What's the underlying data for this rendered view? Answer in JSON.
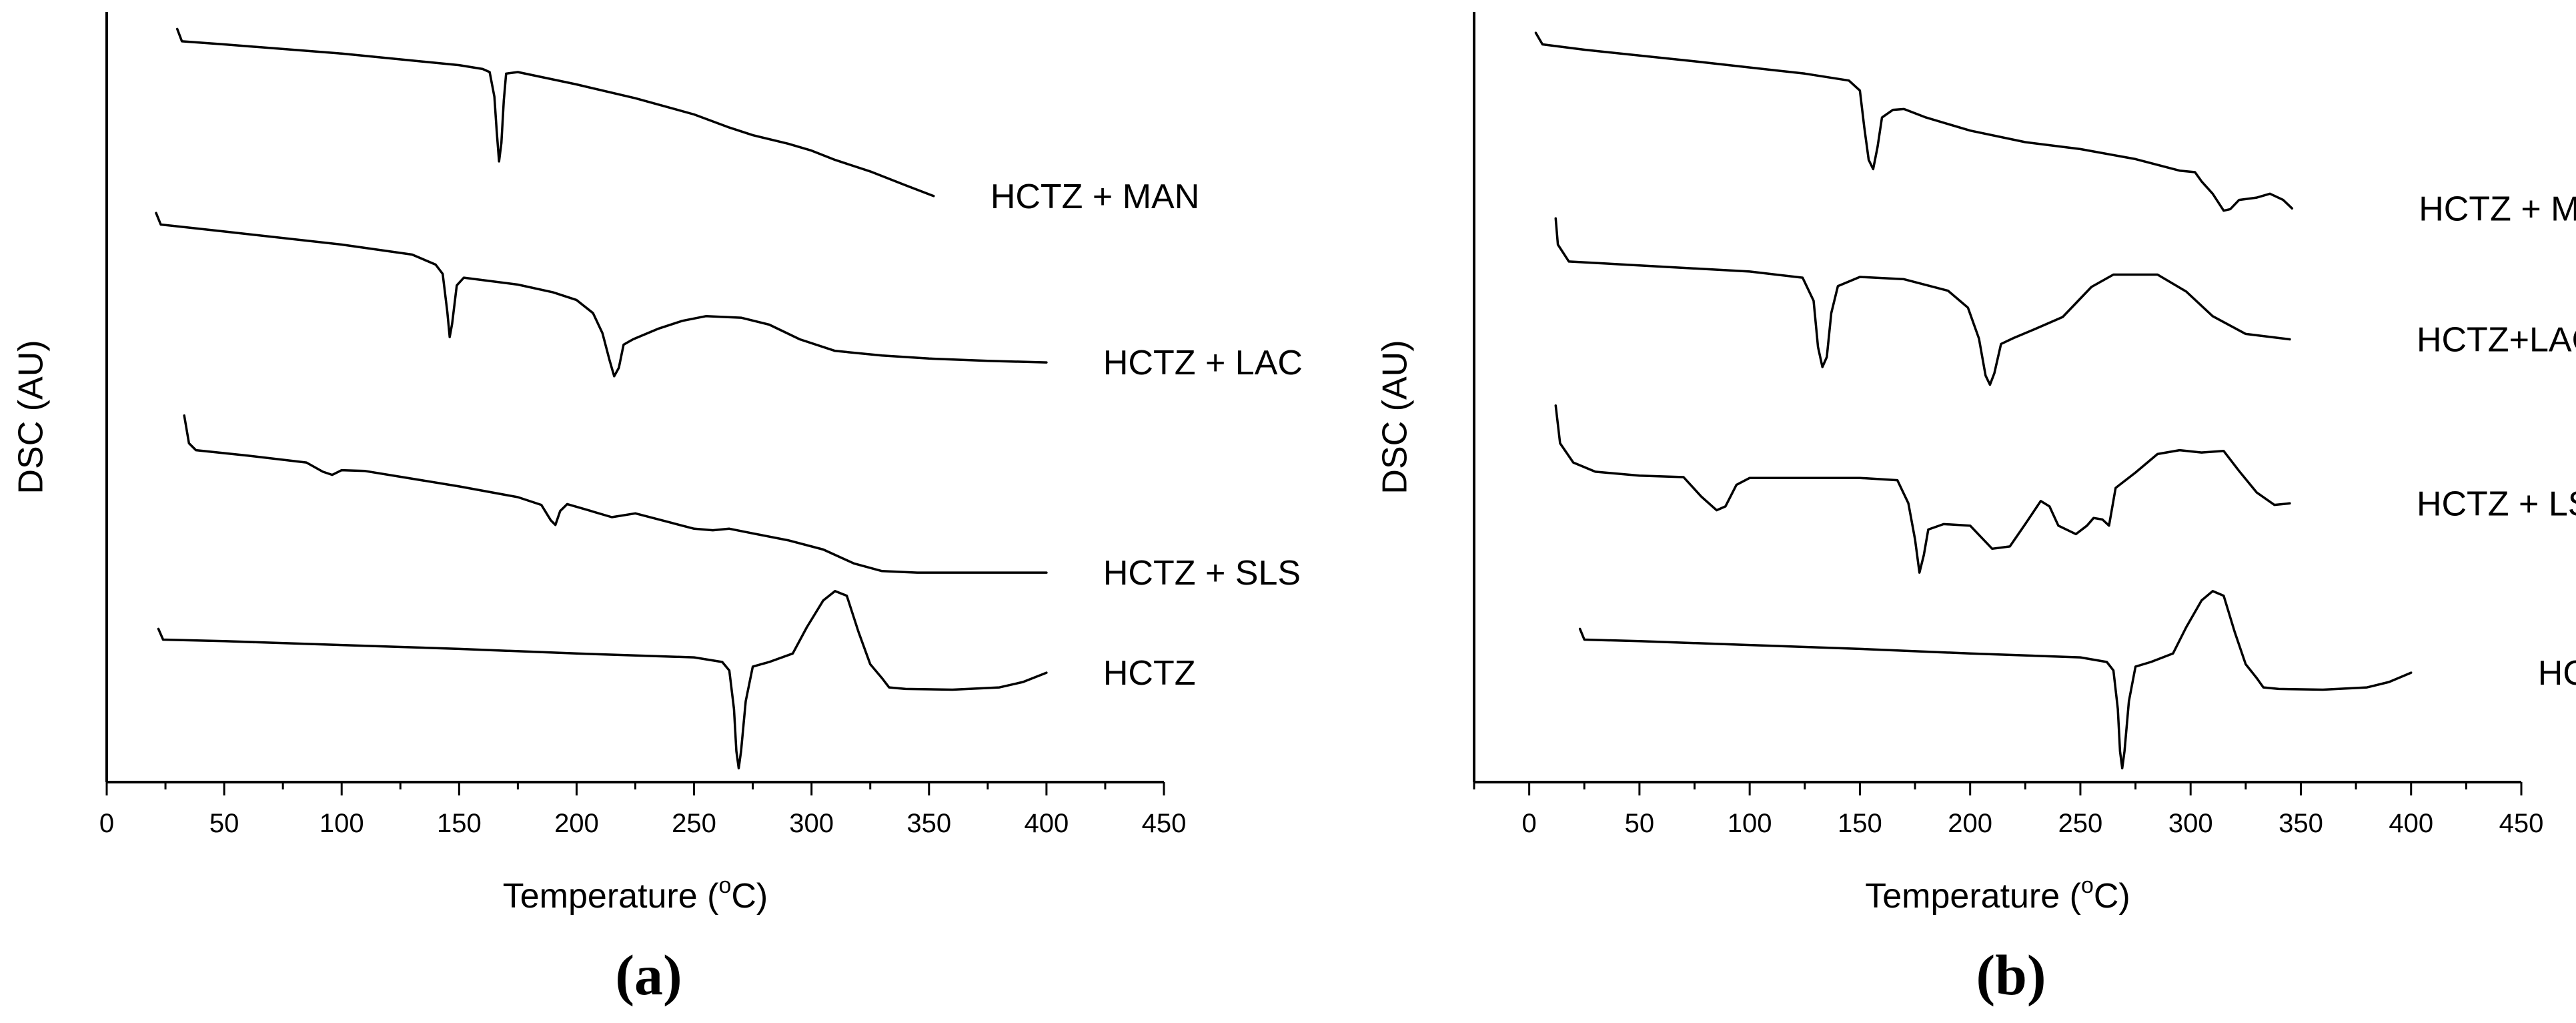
{
  "chart_data": [
    {
      "type": "line",
      "panel_label": "a",
      "title": "",
      "xlabel": "Temperature (°C)",
      "xlabel_parts": {
        "prefix": "Temperature (",
        "superscript": "o",
        "suffix": "C)"
      },
      "ylabel": "DSC (AU)",
      "xlim": [
        0,
        450
      ],
      "xticks": [
        0,
        50,
        100,
        150,
        200,
        250,
        300,
        350,
        400,
        450
      ],
      "ylim": [
        0,
        100
      ],
      "yticks_shown": false,
      "series": [
        {
          "name": "HCTZ + MAN",
          "label_x": 400,
          "points": [
            [
              30,
              97.8
            ],
            [
              32,
              96.2
            ],
            [
              50,
              95.8
            ],
            [
              100,
              94.6
            ],
            [
              150,
              93.1
            ],
            [
              160,
              92.6
            ],
            [
              163,
              92.2
            ],
            [
              165,
              89.0
            ],
            [
              166,
              84.5
            ],
            [
              167,
              80.6
            ],
            [
              168,
              83.0
            ],
            [
              169,
              88.5
            ],
            [
              170,
              92.0
            ],
            [
              175,
              92.2
            ],
            [
              200,
              90.6
            ],
            [
              225,
              88.8
            ],
            [
              250,
              86.7
            ],
            [
              265,
              85.0
            ],
            [
              275,
              84.0
            ],
            [
              290,
              82.9
            ],
            [
              300,
              82.0
            ],
            [
              310,
              80.8
            ],
            [
              325,
              79.3
            ],
            [
              340,
              77.5
            ],
            [
              352,
              76.1
            ]
          ]
        },
        {
          "name": "HCTZ + LAC",
          "label_x": 400,
          "points": [
            [
              21,
              73.9
            ],
            [
              23,
              72.4
            ],
            [
              50,
              71.5
            ],
            [
              100,
              69.8
            ],
            [
              130,
              68.5
            ],
            [
              140,
              67.2
            ],
            [
              143,
              66.0
            ],
            [
              145,
              61.0
            ],
            [
              146,
              57.8
            ],
            [
              147,
              59.5
            ],
            [
              149,
              64.5
            ],
            [
              152,
              65.5
            ],
            [
              175,
              64.6
            ],
            [
              190,
              63.6
            ],
            [
              200,
              62.6
            ],
            [
              207,
              60.9
            ],
            [
              211,
              58.3
            ],
            [
              214,
              54.8
            ],
            [
              216,
              52.7
            ],
            [
              218,
              53.8
            ],
            [
              220,
              56.8
            ],
            [
              224,
              57.5
            ],
            [
              235,
              58.9
            ],
            [
              245,
              59.9
            ],
            [
              255,
              60.5
            ],
            [
              270,
              60.3
            ],
            [
              282,
              59.4
            ],
            [
              295,
              57.5
            ],
            [
              310,
              56.0
            ],
            [
              330,
              55.4
            ],
            [
              350,
              55.0
            ],
            [
              375,
              54.7
            ],
            [
              400,
              54.5
            ]
          ]
        },
        {
          "name": "HCTZ + SLS",
          "label_x": 400,
          "points": [
            [
              33,
              47.6
            ],
            [
              35,
              44.0
            ],
            [
              38,
              43.1
            ],
            [
              60,
              42.4
            ],
            [
              85,
              41.5
            ],
            [
              92,
              40.3
            ],
            [
              96,
              39.9
            ],
            [
              100,
              40.5
            ],
            [
              110,
              40.4
            ],
            [
              150,
              38.4
            ],
            [
              175,
              37.0
            ],
            [
              185,
              36.0
            ],
            [
              189,
              34.0
            ],
            [
              191,
              33.4
            ],
            [
              193,
              35.2
            ],
            [
              196,
              36.1
            ],
            [
              205,
              35.3
            ],
            [
              215,
              34.4
            ],
            [
              225,
              34.9
            ],
            [
              240,
              33.7
            ],
            [
              250,
              32.9
            ],
            [
              258,
              32.7
            ],
            [
              265,
              32.9
            ],
            [
              275,
              32.3
            ],
            [
              290,
              31.4
            ],
            [
              305,
              30.2
            ],
            [
              318,
              28.4
            ],
            [
              330,
              27.4
            ],
            [
              345,
              27.2
            ],
            [
              400,
              27.2
            ]
          ]
        },
        {
          "name": "HCTZ",
          "label_x": 400,
          "points": [
            [
              22,
              19.9
            ],
            [
              24,
              18.5
            ],
            [
              50,
              18.3
            ],
            [
              100,
              17.8
            ],
            [
              150,
              17.3
            ],
            [
              200,
              16.7
            ],
            [
              250,
              16.2
            ],
            [
              262,
              15.6
            ],
            [
              265,
              14.5
            ],
            [
              267,
              9.5
            ],
            [
              268,
              4.0
            ],
            [
              269,
              1.8
            ],
            [
              270,
              4.0
            ],
            [
              272,
              10.5
            ],
            [
              275,
              15.0
            ],
            [
              282,
              15.6
            ],
            [
              292,
              16.7
            ],
            [
              298,
              20.1
            ],
            [
              305,
              23.6
            ],
            [
              310,
              24.8
            ],
            [
              315,
              24.2
            ],
            [
              320,
              19.5
            ],
            [
              325,
              15.3
            ],
            [
              330,
              13.5
            ],
            [
              333,
              12.3
            ],
            [
              340,
              12.1
            ],
            [
              360,
              12.0
            ],
            [
              380,
              12.3
            ],
            [
              390,
              13.0
            ],
            [
              400,
              14.2
            ]
          ]
        }
      ]
    },
    {
      "type": "line",
      "panel_label": "b",
      "title": "",
      "xlabel": "Temperature (°C)",
      "xlabel_parts": {
        "prefix": "Temperature (",
        "superscript": "o",
        "suffix": "C)"
      },
      "ylabel": "DSC (AU)",
      "xlim": [
        -25,
        450
      ],
      "xticks": [
        0,
        50,
        100,
        150,
        200,
        250,
        300,
        350,
        400,
        450
      ],
      "ylim": [
        0,
        100
      ],
      "yticks_shown": false,
      "series": [
        {
          "name": "HCTZ + MAN",
          "label_x": 400,
          "points": [
            [
              3,
              97.3
            ],
            [
              6,
              95.8
            ],
            [
              25,
              95.1
            ],
            [
              75,
              93.6
            ],
            [
              125,
              92.0
            ],
            [
              145,
              91.1
            ],
            [
              150,
              89.8
            ],
            [
              152,
              85.0
            ],
            [
              154,
              80.8
            ],
            [
              156,
              79.6
            ],
            [
              158,
              82.5
            ],
            [
              160,
              86.3
            ],
            [
              165,
              87.3
            ],
            [
              170,
              87.4
            ],
            [
              180,
              86.3
            ],
            [
              200,
              84.6
            ],
            [
              225,
              83.1
            ],
            [
              250,
              82.2
            ],
            [
              275,
              80.9
            ],
            [
              295,
              79.4
            ],
            [
              302,
              79.2
            ],
            [
              305,
              78.0
            ],
            [
              310,
              76.4
            ],
            [
              315,
              74.2
            ],
            [
              318,
              74.4
            ],
            [
              322,
              75.6
            ],
            [
              330,
              75.9
            ],
            [
              336,
              76.4
            ],
            [
              342,
              75.6
            ],
            [
              346,
              74.5
            ]
          ]
        },
        {
          "name": "HCTZ+LAC",
          "label_x": 400,
          "points": [
            [
              12,
              73.2
            ],
            [
              13,
              69.8
            ],
            [
              18,
              67.6
            ],
            [
              50,
              67.1
            ],
            [
              100,
              66.3
            ],
            [
              124,
              65.5
            ],
            [
              129,
              62.5
            ],
            [
              131,
              56.5
            ],
            [
              133,
              53.9
            ],
            [
              135,
              55.2
            ],
            [
              137,
              60.9
            ],
            [
              140,
              64.4
            ],
            [
              150,
              65.6
            ],
            [
              170,
              65.3
            ],
            [
              190,
              63.8
            ],
            [
              199,
              61.6
            ],
            [
              204,
              57.6
            ],
            [
              207,
              52.8
            ],
            [
              209,
              51.6
            ],
            [
              211,
              53.1
            ],
            [
              214,
              56.9
            ],
            [
              220,
              57.7
            ],
            [
              230,
              58.9
            ],
            [
              242,
              60.4
            ],
            [
              255,
              64.3
            ],
            [
              265,
              65.9
            ],
            [
              285,
              65.9
            ],
            [
              298,
              63.7
            ],
            [
              310,
              60.5
            ],
            [
              325,
              58.2
            ],
            [
              345,
              57.5
            ]
          ]
        },
        {
          "name": "HCTZ + LSS",
          "label_x": 400,
          "points": [
            [
              12,
              48.9
            ],
            [
              14,
              44.0
            ],
            [
              20,
              41.5
            ],
            [
              30,
              40.3
            ],
            [
              50,
              39.8
            ],
            [
              70,
              39.6
            ],
            [
              78,
              37.1
            ],
            [
              85,
              35.3
            ],
            [
              89,
              35.8
            ],
            [
              94,
              38.6
            ],
            [
              100,
              39.5
            ],
            [
              150,
              39.5
            ],
            [
              167,
              39.2
            ],
            [
              172,
              36.2
            ],
            [
              175,
              31.5
            ],
            [
              177,
              27.2
            ],
            [
              179,
              29.5
            ],
            [
              181,
              32.8
            ],
            [
              188,
              33.5
            ],
            [
              200,
              33.3
            ],
            [
              210,
              30.3
            ],
            [
              218,
              30.6
            ],
            [
              225,
              33.5
            ],
            [
              232,
              36.5
            ],
            [
              236,
              35.8
            ],
            [
              240,
              33.3
            ],
            [
              248,
              32.2
            ],
            [
              253,
              33.3
            ],
            [
              256,
              34.3
            ],
            [
              260,
              34.1
            ],
            [
              263,
              33.3
            ],
            [
              266,
              38.2
            ],
            [
              275,
              40.2
            ],
            [
              285,
              42.6
            ],
            [
              295,
              43.1
            ],
            [
              305,
              42.8
            ],
            [
              315,
              43.0
            ],
            [
              322,
              40.4
            ],
            [
              330,
              37.6
            ],
            [
              338,
              36.0
            ],
            [
              345,
              36.2
            ]
          ]
        },
        {
          "name": "HCTZ",
          "label_x": 400,
          "points": [
            [
              23,
              19.9
            ],
            [
              25,
              18.5
            ],
            [
              50,
              18.3
            ],
            [
              100,
              17.8
            ],
            [
              150,
              17.3
            ],
            [
              200,
              16.7
            ],
            [
              250,
              16.2
            ],
            [
              262,
              15.6
            ],
            [
              265,
              14.5
            ],
            [
              267,
              9.5
            ],
            [
              268,
              4.0
            ],
            [
              269,
              1.8
            ],
            [
              270,
              4.0
            ],
            [
              272,
              10.5
            ],
            [
              275,
              15.0
            ],
            [
              282,
              15.6
            ],
            [
              292,
              16.7
            ],
            [
              298,
              20.1
            ],
            [
              305,
              23.6
            ],
            [
              310,
              24.8
            ],
            [
              315,
              24.2
            ],
            [
              320,
              19.5
            ],
            [
              325,
              15.3
            ],
            [
              330,
              13.5
            ],
            [
              333,
              12.3
            ],
            [
              340,
              12.1
            ],
            [
              360,
              12.0
            ],
            [
              380,
              12.3
            ],
            [
              390,
              13.0
            ],
            [
              400,
              14.2
            ]
          ]
        }
      ]
    }
  ]
}
